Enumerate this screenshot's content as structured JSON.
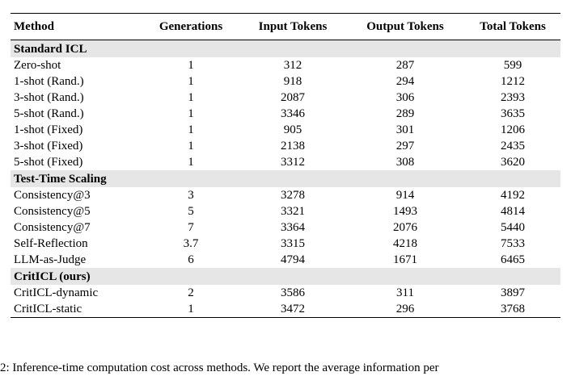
{
  "table": {
    "headers": [
      "Method",
      "Generations",
      "Input Tokens",
      "Output Tokens",
      "Total Tokens"
    ],
    "groups": [
      {
        "title": "Standard ICL",
        "rows": [
          [
            "Zero-shot",
            "1",
            "312",
            "287",
            "599"
          ],
          [
            "1-shot (Rand.)",
            "1",
            "918",
            "294",
            "1212"
          ],
          [
            "3-shot (Rand.)",
            "1",
            "2087",
            "306",
            "2393"
          ],
          [
            "5-shot (Rand.)",
            "1",
            "3346",
            "289",
            "3635"
          ],
          [
            "1-shot (Fixed)",
            "1",
            "905",
            "301",
            "1206"
          ],
          [
            "3-shot (Fixed)",
            "1",
            "2138",
            "297",
            "2435"
          ],
          [
            "5-shot (Fixed)",
            "1",
            "3312",
            "308",
            "3620"
          ]
        ]
      },
      {
        "title": "Test-Time Scaling",
        "rows": [
          [
            "Consistency@3",
            "3",
            "3278",
            "914",
            "4192"
          ],
          [
            "Consistency@5",
            "5",
            "3321",
            "1493",
            "4814"
          ],
          [
            "Consistency@7",
            "7",
            "3364",
            "2076",
            "5440"
          ],
          [
            "Self-Reflection",
            "3.7",
            "3315",
            "4218",
            "7533"
          ],
          [
            "LLM-as-Judge",
            "6",
            "4794",
            "1671",
            "6465"
          ]
        ]
      },
      {
        "title": "CritICL (ours)",
        "rows": [
          [
            "CritICL-dynamic",
            "2",
            "3586",
            "311",
            "3897"
          ],
          [
            "CritICL-static",
            "1",
            "3472",
            "296",
            "3768"
          ]
        ]
      }
    ]
  },
  "caption": "2: Inference-time computation cost across methods. We report the average information per"
}
